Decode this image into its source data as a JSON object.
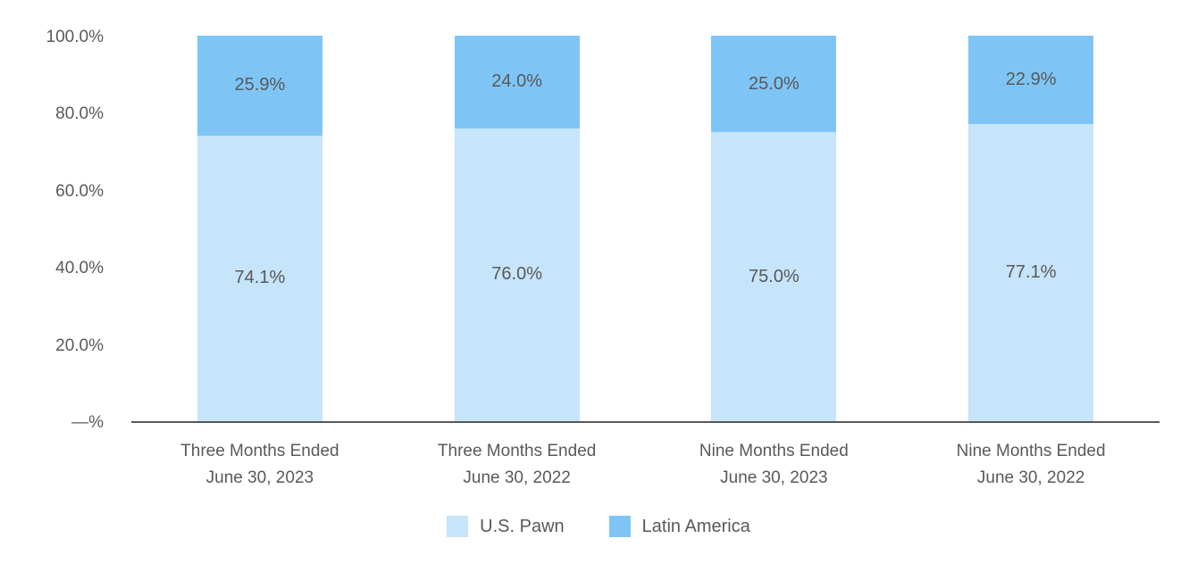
{
  "chart_data": {
    "type": "bar",
    "variant": "stacked-100-percent",
    "categories": [
      [
        "Three Months Ended",
        "June 30, 2023"
      ],
      [
        "Three Months Ended",
        "June 30, 2022"
      ],
      [
        "Nine Months Ended",
        "June 30, 2023"
      ],
      [
        "Nine Months Ended",
        "June 30, 2022"
      ]
    ],
    "series": [
      {
        "name": "U.S. Pawn",
        "color": "#c6e4fa",
        "values": [
          74.1,
          76.0,
          75.0,
          77.1
        ],
        "labels": [
          "74.1%",
          "76.0%",
          "75.0%",
          "77.1%"
        ]
      },
      {
        "name": "Latin America",
        "color": "#7ec5f6",
        "values": [
          25.9,
          24.0,
          25.0,
          22.9
        ],
        "labels": [
          "25.9%",
          "24.0%",
          "25.0%",
          "22.9%"
        ]
      }
    ],
    "y_ticks": [
      {
        "label": "100.0%",
        "value": 100
      },
      {
        "label": "80.0%",
        "value": 80
      },
      {
        "label": "60.0%",
        "value": 60
      },
      {
        "label": "40.0%",
        "value": 40
      },
      {
        "label": "20.0%",
        "value": 20
      },
      {
        "label": "—%",
        "value": 0
      }
    ],
    "ylim": [
      0,
      100
    ],
    "title": "",
    "xlabel": "",
    "ylabel": "",
    "grid": false,
    "legend_position": "bottom-center",
    "colors": {
      "text": "#595959",
      "axis_line": "#57585a",
      "background": "#ffffff"
    }
  }
}
